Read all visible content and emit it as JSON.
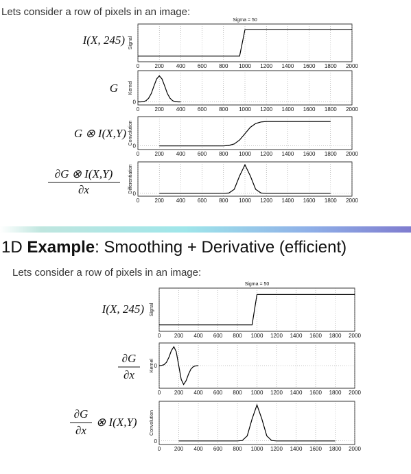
{
  "slide": {
    "top_caption": "Lets consider a row of pixels in an image:",
    "title_prefix": "1D ",
    "title_bold": "Example",
    "title_rest": ": Smoothing + Derivative (efficient)",
    "caption": "Lets consider a row of pixels in an image:",
    "top_labels": {
      "signal": "I(X, 245)",
      "kernel": "G",
      "convolution": "G ⊗ I(X,Y)",
      "derivative_numerator": "∂G ⊗ I(X,Y)",
      "derivative_denominator": "∂x"
    },
    "bottom_labels": {
      "signal": "I(X, 245)",
      "kernel_numerator": "∂G",
      "kernel_denominator": "∂x",
      "conv_numerator": "∂G",
      "conv_denominator": "∂x",
      "conv_suffix": "⊗ I(X,Y)"
    }
  },
  "chart_data": [
    {
      "type": "line",
      "title": "Sigma = 50",
      "y_label": "Signal",
      "color": "#000000",
      "grid": true,
      "x": [
        0,
        50,
        100,
        150,
        200,
        250,
        300,
        350,
        400,
        450,
        500,
        550,
        600,
        650,
        700,
        750,
        800,
        850,
        900,
        950,
        1000,
        1050,
        1100,
        1150,
        1200,
        1250,
        1300,
        1350,
        1400,
        1450,
        1500,
        1550,
        1600,
        1650,
        1700,
        1750,
        1800,
        1850,
        1900,
        1950,
        2000
      ],
      "values": [
        0.15,
        0.15,
        0.15,
        0.15,
        0.15,
        0.15,
        0.15,
        0.15,
        0.15,
        0.15,
        0.15,
        0.15,
        0.15,
        0.15,
        0.15,
        0.15,
        0.15,
        0.15,
        0.15,
        0.15,
        0.85,
        0.85,
        0.85,
        0.85,
        0.85,
        0.85,
        0.85,
        0.85,
        0.85,
        0.85,
        0.85,
        0.85,
        0.85,
        0.85,
        0.85,
        0.85,
        0.85,
        0.85,
        0.85,
        0.85,
        0.85
      ],
      "xlim": [
        0,
        2000
      ],
      "xticks": [
        0,
        200,
        400,
        600,
        800,
        1000,
        1200,
        1400,
        1600,
        1800,
        2000
      ],
      "ylim": [
        0,
        1
      ],
      "yticks": []
    },
    {
      "type": "line",
      "y_label": "Kernel",
      "color": "#000000",
      "grid": true,
      "x": [
        0,
        25,
        50,
        75,
        100,
        125,
        150,
        175,
        200,
        225,
        250,
        275,
        300,
        325,
        350,
        375,
        400
      ],
      "values": [
        0,
        0,
        0.01,
        0.04,
        0.14,
        0.32,
        0.61,
        0.88,
        1,
        0.88,
        0.61,
        0.32,
        0.14,
        0.04,
        0.01,
        0,
        0
      ],
      "xlim": [
        0,
        2000
      ],
      "xticks": [
        0,
        200,
        400,
        600,
        800,
        1000,
        1200,
        1400,
        1600,
        1800,
        2000
      ],
      "ylim": [
        -0.12,
        1.2
      ],
      "yticks": [
        0
      ]
    },
    {
      "type": "line",
      "y_label": "Convolution",
      "color": "#000000",
      "grid": true,
      "x": [
        200,
        250,
        300,
        350,
        400,
        450,
        500,
        550,
        600,
        650,
        700,
        750,
        800,
        850,
        900,
        950,
        1000,
        1050,
        1100,
        1150,
        1200,
        1250,
        1300,
        1350,
        1400,
        1450,
        1500,
        1550,
        1600,
        1650,
        1700,
        1750,
        1800
      ],
      "values": [
        0,
        0,
        0,
        0,
        0,
        0,
        0,
        0,
        0,
        0,
        0,
        0,
        0,
        0.02,
        0.08,
        0.24,
        0.5,
        0.76,
        0.92,
        0.98,
        1,
        1,
        1,
        1,
        1,
        1,
        1,
        1,
        1,
        1,
        1,
        1,
        1
      ],
      "xlim": [
        0,
        2000
      ],
      "xticks": [
        0,
        200,
        400,
        600,
        800,
        1000,
        1200,
        1400,
        1600,
        1800,
        2000
      ],
      "ylim": [
        -0.15,
        1.2
      ],
      "yticks": [
        0
      ]
    },
    {
      "type": "line",
      "y_label": "Differentiation",
      "color": "#000000",
      "grid": true,
      "x": [
        200,
        250,
        300,
        350,
        400,
        450,
        500,
        550,
        600,
        650,
        700,
        750,
        800,
        850,
        900,
        950,
        1000,
        1050,
        1100,
        1150,
        1200,
        1250,
        1300,
        1350,
        1400,
        1450,
        1500,
        1550,
        1600,
        1650,
        1700,
        1750,
        1800
      ],
      "values": [
        0,
        0,
        0,
        0,
        0,
        0,
        0,
        0,
        0,
        0,
        0,
        0,
        0,
        0.01,
        0.14,
        0.61,
        1,
        0.61,
        0.14,
        0.01,
        0,
        0,
        0,
        0,
        0,
        0,
        0,
        0,
        0,
        0,
        0,
        0,
        0
      ],
      "xlim": [
        0,
        2000
      ],
      "xticks": [
        0,
        200,
        400,
        600,
        800,
        1000,
        1200,
        1400,
        1600,
        1800,
        2000
      ],
      "ylim": [
        -0.1,
        1.1
      ],
      "yticks": [
        0
      ]
    },
    {
      "type": "line",
      "title": "Sigma = 50",
      "y_label": "Signal",
      "color": "#000000",
      "grid": true,
      "x": [
        0,
        50,
        100,
        150,
        200,
        250,
        300,
        350,
        400,
        450,
        500,
        550,
        600,
        650,
        700,
        750,
        800,
        850,
        900,
        950,
        1000,
        1050,
        1100,
        1150,
        1200,
        1250,
        1300,
        1350,
        1400,
        1450,
        1500,
        1550,
        1600,
        1650,
        1700,
        1750,
        1800,
        1850,
        1900,
        1950,
        2000
      ],
      "values": [
        0.15,
        0.15,
        0.15,
        0.15,
        0.15,
        0.15,
        0.15,
        0.15,
        0.15,
        0.15,
        0.15,
        0.15,
        0.15,
        0.15,
        0.15,
        0.15,
        0.15,
        0.15,
        0.15,
        0.15,
        0.85,
        0.85,
        0.85,
        0.85,
        0.85,
        0.85,
        0.85,
        0.85,
        0.85,
        0.85,
        0.85,
        0.85,
        0.85,
        0.85,
        0.85,
        0.85,
        0.85,
        0.85,
        0.85,
        0.85,
        0.85
      ],
      "xlim": [
        0,
        2000
      ],
      "xticks": [
        0,
        200,
        400,
        600,
        800,
        1000,
        1200,
        1400,
        1600,
        1800,
        2000
      ],
      "ylim": [
        0,
        1
      ],
      "yticks": []
    },
    {
      "type": "line",
      "y_label": "Kernel",
      "color": "#000000",
      "grid": true,
      "x": [
        0,
        25,
        50,
        75,
        100,
        125,
        150,
        175,
        200,
        225,
        250,
        275,
        300,
        325,
        350,
        375,
        400
      ],
      "values": [
        0,
        0.01,
        0.05,
        0.18,
        0.45,
        0.8,
        1,
        0.73,
        0,
        -0.73,
        -1,
        -0.8,
        -0.45,
        -0.18,
        -0.05,
        -0.01,
        0
      ],
      "xlim": [
        0,
        2000
      ],
      "xticks": [
        0,
        200,
        400,
        600,
        800,
        1000,
        1200,
        1400,
        1600,
        1800,
        2000
      ],
      "ylim": [
        -1.2,
        1.2
      ],
      "yticks": [
        0
      ]
    },
    {
      "type": "line",
      "y_label": "Convolution",
      "color": "#000000",
      "grid": true,
      "x": [
        200,
        250,
        300,
        350,
        400,
        450,
        500,
        550,
        600,
        650,
        700,
        750,
        800,
        850,
        900,
        950,
        1000,
        1050,
        1100,
        1150,
        1200,
        1250,
        1300,
        1350,
        1400,
        1450,
        1500,
        1550,
        1600,
        1650,
        1700,
        1750,
        1800
      ],
      "values": [
        0,
        0,
        0,
        0,
        0,
        0,
        0,
        0,
        0,
        0,
        0,
        0,
        0,
        0.01,
        0.14,
        0.61,
        1,
        0.61,
        0.14,
        0.01,
        0,
        0,
        0,
        0,
        0,
        0,
        0,
        0,
        0,
        0,
        0,
        0,
        0
      ],
      "xlim": [
        0,
        2000
      ],
      "xticks": [
        0,
        200,
        400,
        600,
        800,
        1000,
        1200,
        1400,
        1600,
        1800,
        2000
      ],
      "ylim": [
        -0.1,
        1.1
      ],
      "yticks": [
        0
      ]
    }
  ]
}
